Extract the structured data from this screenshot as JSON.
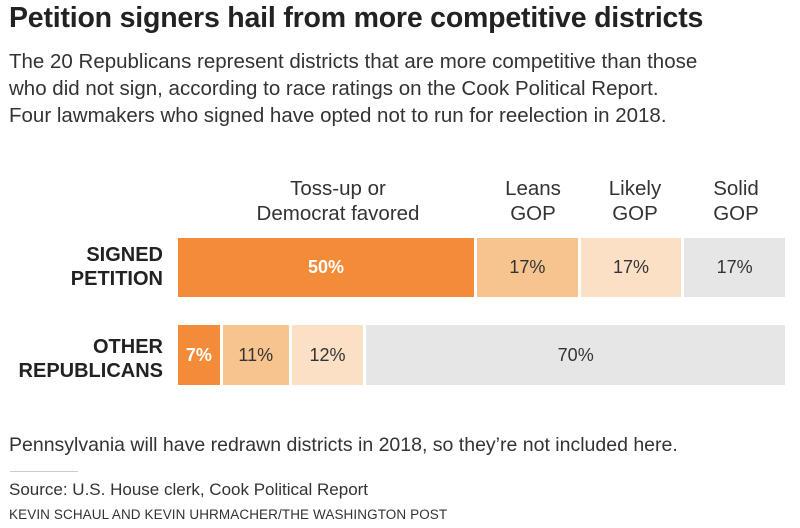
{
  "title": "Petition signers hail from more competitive districts",
  "subtitle": [
    "The 20 Republicans represent districts that are more competitive than those",
    "who did not sign, according to race ratings on the Cook Political Report.",
    "Four lawmakers who signed have opted not to run for reelection in 2018."
  ],
  "columns": [
    [
      "Toss-up or",
      "Democrat favored"
    ],
    [
      "Leans",
      "GOP"
    ],
    [
      "Likely",
      "GOP"
    ],
    [
      "Solid",
      "GOP"
    ]
  ],
  "colors": {
    "toss_up_or_democrat_favored": "#f28c38",
    "leans_gop": "#f7c38f",
    "likely_gop": "#fbe0c6",
    "solid_gop": "#e6e6e6"
  },
  "chart_data": {
    "type": "bar",
    "stacked": true,
    "orientation": "horizontal",
    "unit": "%",
    "categories": [
      "Toss-up or Democrat favored",
      "Leans GOP",
      "Likely GOP",
      "Solid GOP"
    ],
    "rows": [
      {
        "label": [
          "SIGNED",
          "PETITION"
        ],
        "values": [
          50,
          17,
          17,
          17
        ],
        "labels": [
          "50%",
          "17%",
          "17%",
          "17%"
        ]
      },
      {
        "label": [
          "OTHER",
          "REPUBLICANS"
        ],
        "values": [
          7,
          11,
          12,
          70
        ],
        "labels": [
          "7%",
          "11%",
          "12%",
          "70%"
        ]
      }
    ]
  },
  "note": "Pennsylvania will have redrawn districts in 2018, so they’re not included here.",
  "source": "Source: U.S. House clerk, Cook Political Report",
  "credit": "KEVIN SCHAUL AND KEVIN UHRMACHER/THE WASHINGTON POST"
}
